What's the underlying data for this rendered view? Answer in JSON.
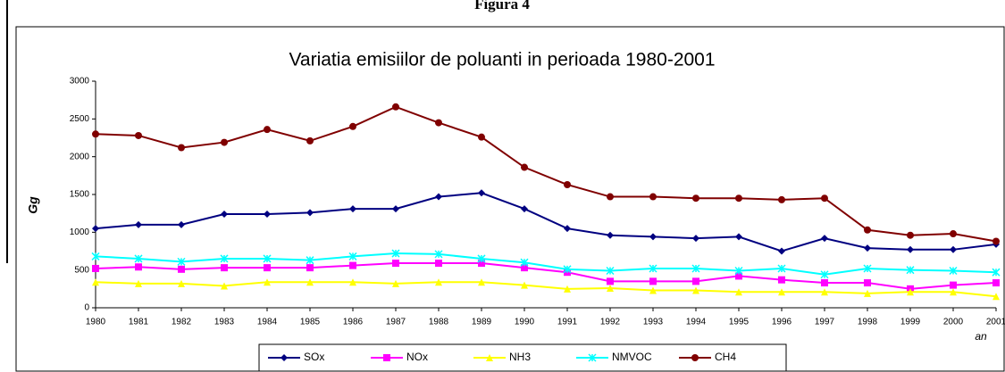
{
  "figure_label": "Figura 4",
  "chart_data": {
    "type": "line",
    "title": "Variatia emisiilor de poluanti in perioada 1980-2001",
    "y_label": "Gg",
    "x_label": "an",
    "categories": [
      "1980",
      "1981",
      "1982",
      "1983",
      "1984",
      "1985",
      "1986",
      "1987",
      "1988",
      "1989",
      "1990",
      "1991",
      "1992",
      "1993",
      "1994",
      "1995",
      "1996",
      "1997",
      "1998",
      "1999",
      "2000",
      "2001"
    ],
    "ylim": [
      0,
      3000
    ],
    "yticks": [
      0,
      500,
      1000,
      1500,
      2000,
      2500,
      3000
    ],
    "legend": "bottom",
    "series": [
      {
        "name": "SOx",
        "color": "#000080",
        "marker": "diamond",
        "values": [
          1050,
          1100,
          1100,
          1240,
          1240,
          1260,
          1310,
          1310,
          1470,
          1520,
          1310,
          1050,
          960,
          940,
          920,
          940,
          750,
          920,
          790,
          770,
          770,
          840
        ]
      },
      {
        "name": "NOx",
        "color": "#ff00ff",
        "marker": "square",
        "values": [
          520,
          540,
          510,
          530,
          530,
          530,
          560,
          590,
          590,
          590,
          530,
          470,
          350,
          350,
          350,
          420,
          370,
          330,
          330,
          250,
          300,
          330
        ]
      },
      {
        "name": "NH3",
        "color": "#ffff00",
        "marker": "triangle",
        "values": [
          340,
          320,
          320,
          290,
          340,
          340,
          340,
          320,
          340,
          340,
          300,
          250,
          260,
          230,
          230,
          210,
          210,
          210,
          190,
          210,
          210,
          150
        ]
      },
      {
        "name": "NMVOC",
        "color": "#00ffff",
        "marker": "star",
        "values": [
          680,
          650,
          610,
          650,
          650,
          630,
          680,
          720,
          710,
          650,
          600,
          510,
          490,
          520,
          520,
          490,
          520,
          440,
          520,
          500,
          490,
          470
        ]
      },
      {
        "name": "CH4",
        "color": "#800000",
        "marker": "circle",
        "values": [
          2300,
          2280,
          2120,
          2190,
          2360,
          2210,
          2400,
          2660,
          2450,
          2260,
          1860,
          1630,
          1470,
          1470,
          1450,
          1450,
          1430,
          1450,
          1030,
          960,
          980,
          880
        ]
      }
    ]
  }
}
